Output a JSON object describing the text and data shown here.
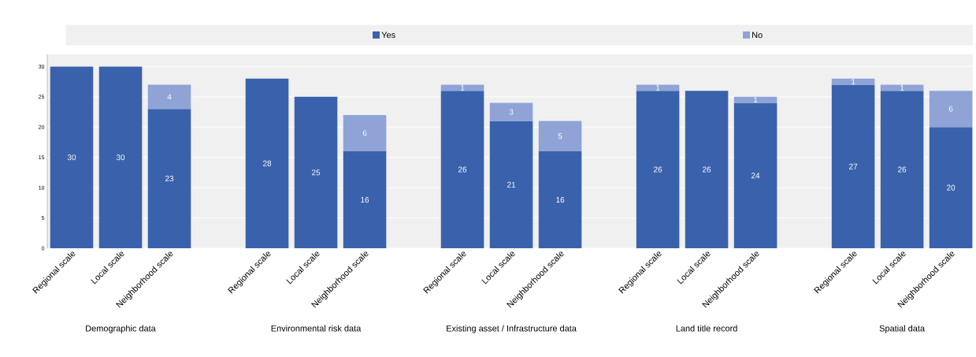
{
  "chart_data": {
    "type": "bar",
    "stacked": true,
    "categories": [
      "Regional scale",
      "Local scale",
      "Neighborhood scale",
      null,
      "Regional scale",
      "Local scale",
      "Neighborhood scale",
      null,
      "Regional scale",
      "Local scale",
      "Neighborhood scale",
      null,
      "Regional scale",
      "Local scale",
      "Neighborhood scale",
      null,
      "Regional scale",
      "Local scale",
      "Neighborhood scale"
    ],
    "series": [
      {
        "name": "Yes",
        "color": "#3a62ac",
        "values": [
          30,
          30,
          23,
          null,
          28,
          25,
          16,
          null,
          26,
          21,
          16,
          null,
          26,
          26,
          24,
          null,
          27,
          26,
          20
        ]
      },
      {
        "name": "No",
        "color": "#8fa3d6",
        "values": [
          null,
          null,
          4,
          null,
          null,
          null,
          6,
          null,
          1,
          3,
          5,
          null,
          1,
          null,
          1,
          null,
          1,
          1,
          6
        ]
      }
    ],
    "annotations": [
      "Demographic data",
      "Environmental risk data",
      "Existing asset / Infrastructure data",
      "Land title record",
      "Spatial data"
    ],
    "ylim": [
      0,
      32
    ],
    "yticks": [
      0,
      5,
      10,
      15,
      20,
      25,
      30
    ],
    "grid": "y",
    "legend": "top",
    "data_labels": true
  }
}
